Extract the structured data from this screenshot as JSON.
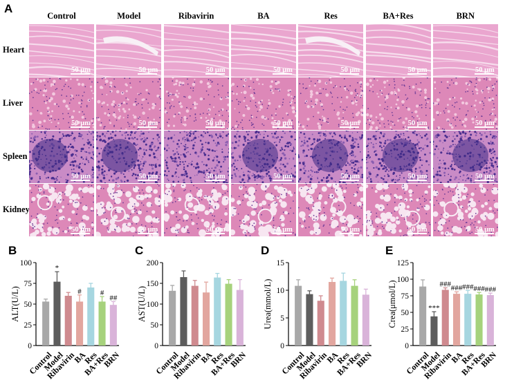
{
  "figure": {
    "panel_a_letter": "A",
    "groups": [
      "Control",
      "Model",
      "Ribavirin",
      "BA",
      "Res",
      "BA+Res",
      "BRN"
    ],
    "tissues": [
      {
        "name": "Heart",
        "tint": "#e59ac7"
      },
      {
        "name": "Liver",
        "tint": "#cf6aa6"
      },
      {
        "name": "Spleen",
        "tint": "#7a4fa6"
      },
      {
        "name": "Kidney",
        "tint": "#d677ad"
      }
    ],
    "scale_bar": "50 μm"
  },
  "colors": {
    "bars": [
      "#a8a8a8",
      "#5d5d5d",
      "#cf8a8f",
      "#e2a69f",
      "#a6d6e0",
      "#a6d27c",
      "#d9b3d9"
    ],
    "he_pink": "#e8a0cc",
    "he_purple": "#6a3f9a"
  },
  "chart_data": [
    {
      "type": "bar",
      "panel": "B",
      "categories": [
        "Control",
        "Model",
        "Ribavirin",
        "BA",
        "Res",
        "BA+Res",
        "BRN"
      ],
      "values": [
        53,
        77,
        60,
        53,
        70,
        53,
        49
      ],
      "errors": [
        3,
        12,
        4,
        8,
        5,
        6,
        4
      ],
      "significance": [
        "",
        "*",
        "",
        "#",
        "",
        "#",
        "##"
      ],
      "ylabel": "ALT(U/L)",
      "ylim": [
        0,
        100
      ],
      "yticks": [
        0,
        25,
        50,
        75,
        100
      ]
    },
    {
      "type": "bar",
      "panel": "C",
      "categories": [
        "Control",
        "Model",
        "Ribavirin",
        "BA",
        "Res",
        "BA+Res",
        "BRN"
      ],
      "values": [
        132,
        165,
        144,
        128,
        164,
        149,
        134
      ],
      "errors": [
        13,
        15,
        13,
        25,
        10,
        10,
        25
      ],
      "significance": [
        "",
        "",
        "",
        "",
        "",
        "",
        ""
      ],
      "ylabel": "AST(U/L)",
      "ylim": [
        0,
        200
      ],
      "yticks": [
        0,
        50,
        100,
        150,
        200
      ]
    },
    {
      "type": "bar",
      "panel": "D",
      "categories": [
        "Control",
        "Model",
        "Ribavirin",
        "BA",
        "Res",
        "BA+Res",
        "BRN"
      ],
      "values": [
        10.8,
        9.3,
        8.1,
        11.5,
        11.7,
        10.8,
        9.2
      ],
      "errors": [
        1.1,
        0.6,
        0.9,
        0.7,
        1.4,
        1.1,
        1.0
      ],
      "significance": [
        "",
        "",
        "",
        "",
        "",
        "",
        ""
      ],
      "ylabel": "Urea(mmol/L)",
      "ylim": [
        0,
        15
      ],
      "yticks": [
        0,
        5,
        10,
        15
      ]
    },
    {
      "type": "bar",
      "panel": "E",
      "categories": [
        "Control",
        "Model",
        "Ribavirin",
        "BA",
        "Res",
        "BA+Res",
        "BRN"
      ],
      "values": [
        89,
        44,
        84,
        78,
        78,
        77,
        76
      ],
      "errors": [
        10,
        7,
        3,
        3,
        5,
        3,
        3
      ],
      "significance": [
        "",
        "***",
        "###",
        "###",
        "###",
        "###",
        "###"
      ],
      "ylabel": "Crea(μmol/L)",
      "ylim": [
        0,
        125
      ],
      "yticks": [
        0,
        25,
        50,
        75,
        100,
        125
      ]
    }
  ]
}
